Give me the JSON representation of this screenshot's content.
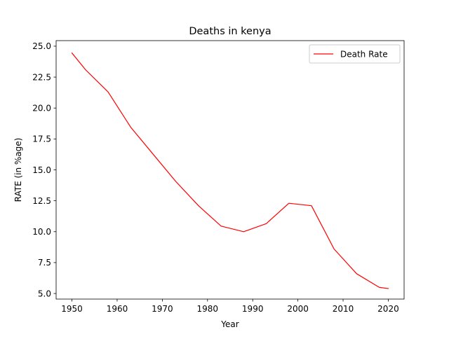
{
  "chart_data": {
    "type": "line",
    "title": "Deaths in kenya",
    "xlabel": "Year",
    "ylabel": "RATE (in %age)",
    "xlim": [
      1946.5,
      2023.5
    ],
    "ylim": [
      4.55,
      25.45
    ],
    "xticks": [
      1950,
      1960,
      1970,
      1980,
      1990,
      2000,
      2010,
      2020
    ],
    "xtick_labels": [
      "1950",
      "1960",
      "1970",
      "1980",
      "1990",
      "2000",
      "2010",
      "2020"
    ],
    "yticks": [
      5.0,
      7.5,
      10.0,
      12.5,
      15.0,
      17.5,
      20.0,
      22.5,
      25.0
    ],
    "ytick_labels": [
      "5.0",
      "7.5",
      "10.0",
      "12.5",
      "15.0",
      "17.5",
      "20.0",
      "22.5",
      "25.0"
    ],
    "grid": false,
    "legend_position": "top-right",
    "series": [
      {
        "name": "Death Rate",
        "color": "#ff0000",
        "x": [
          1950,
          1953,
          1958,
          1963,
          1968,
          1973,
          1978,
          1983,
          1988,
          1993,
          1998,
          2003,
          2008,
          2013,
          2018,
          2020
        ],
        "y": [
          24.45,
          23.1,
          21.3,
          18.45,
          16.25,
          14.05,
          12.1,
          10.45,
          10.0,
          10.65,
          12.3,
          12.1,
          8.6,
          6.6,
          5.5,
          5.4
        ]
      }
    ]
  }
}
